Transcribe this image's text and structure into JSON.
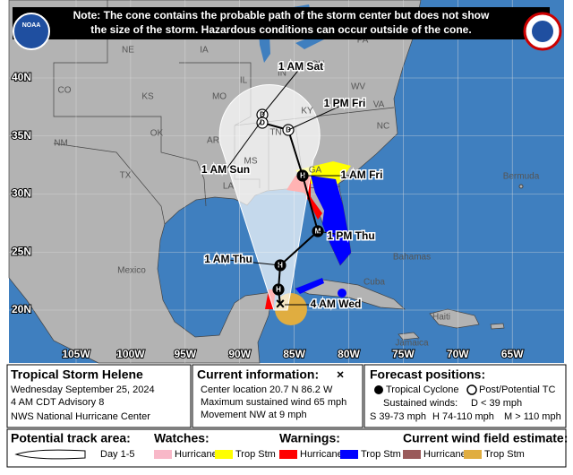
{
  "note": [
    "Note: The cone contains the probable path of the storm center but does not show",
    "the size of the storm. Hazardous conditions can occur outside of the cone."
  ],
  "logo": "NOAA",
  "map": {
    "latitudes": [
      "40N",
      "35N",
      "30N",
      "25N",
      "20N"
    ],
    "longitudes": [
      "105W",
      "100W",
      "95W",
      "90W",
      "85W",
      "80W",
      "75W",
      "70W",
      "65W"
    ],
    "places": [
      "NE",
      "IA",
      "IL",
      "IN",
      "OH",
      "PA",
      "CO",
      "KS",
      "MO",
      "KY",
      "WV",
      "VA",
      "OK",
      "AR",
      "TN",
      "NC",
      "NM",
      "TX",
      "MS",
      "GA",
      "LA",
      "Mexico",
      "Bermuda",
      "Cuba",
      "Bahamas",
      "Jamaica",
      "Haiti"
    ],
    "forecast_times": [
      "1 AM Sat",
      "1 PM Fri",
      "1 AM Sun",
      "1 AM Fri",
      "1 PM Thu",
      "1 AM Thu",
      "4 AM Wed"
    ],
    "markers": [
      "D",
      "D",
      "D",
      "H",
      "M",
      "H",
      "H"
    ]
  },
  "info": {
    "storm": "Tropical Storm Helene",
    "date": "Wednesday September 25, 2024",
    "advisory": "4 AM CDT Advisory 8",
    "center": "NWS National Hurricane Center",
    "current_title": "Current information:",
    "current_symbol": "×",
    "location": "Center location 20.7 N 86.2 W",
    "wind": "Maximum sustained wind 65 mph",
    "movement": "Movement NW at 9 mph",
    "forecast_title": "Forecast positions:",
    "tropical": "Tropical Cyclone",
    "post": "Post/Potential TC",
    "sustained": "Sustained winds:",
    "d": "D < 39 mph",
    "s": "S 39-73 mph",
    "h": "H 74-110 mph",
    "m": "M > 110 mph"
  },
  "legend": {
    "track_title": "Potential track area:",
    "track_days": "Day 1-5",
    "watches_title": "Watches:",
    "watch_hurricane": "Hurricane",
    "watch_storm": "Trop Stm",
    "warnings_title": "Warnings:",
    "warning_hurricane": "Hurricane",
    "warning_storm": "Trop Stm",
    "wind_title": "Current wind field estimate:",
    "wind_hurricane": "Hurricane",
    "wind_storm": "Trop Stm"
  }
}
